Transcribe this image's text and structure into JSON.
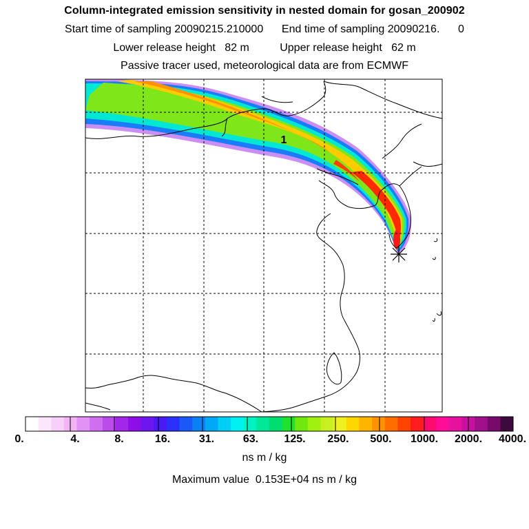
{
  "header": {
    "title": "Column-integrated emission sensitivity in nested domain for gosan_200902",
    "sampling_time": "Start time of sampling 20090215.210000      End time of sampling 20090216.      0",
    "release_height": "Lower release height   82 m          Upper release height   62 m",
    "tracer_info": "Passive tracer used, meteorological data are from ECMWF"
  },
  "map": {
    "release_label": "1",
    "colors": {
      "plume_edge": "#b45ff0",
      "plume_outer": "#00e8d0",
      "plume_mid": "#8ee81a",
      "plume_core": "#ffc000",
      "plume_peak": "#ff2000",
      "receptor_marker": "#000000"
    }
  },
  "colorbar": {
    "tick_labels": [
      "0.",
      "4.",
      "8.",
      "16.",
      "31.",
      "63.",
      "125.",
      "250.",
      "500.",
      "1000.",
      "2000.",
      "4000."
    ],
    "units": "ns m / kg",
    "colors": [
      "#ffffff",
      "#fbe6fb",
      "#f6d0f8",
      "#f2b4f5",
      "#e292f5",
      "#cf6ff0",
      "#bb4cec",
      "#a227ea",
      "#8e0ee8",
      "#6e16f0",
      "#4a1af4",
      "#2a30f8",
      "#1a58f8",
      "#0a80f5",
      "#00a8f5",
      "#00cff5",
      "#00f0f0",
      "#00f2c0",
      "#00e898",
      "#00de70",
      "#20e030",
      "#70e810",
      "#a0f010",
      "#c8f020",
      "#f0f020",
      "#ffd700",
      "#ffb400",
      "#ff9200",
      "#ff6c00",
      "#ff4400",
      "#ff1c1c",
      "#ff0a70",
      "#ff0c98",
      "#e8109f",
      "#c8109f",
      "#a0108a",
      "#780a6c",
      "#3c0a3c"
    ]
  },
  "max_value_text": "Maximum value  0.153E+04 ns m / kg"
}
